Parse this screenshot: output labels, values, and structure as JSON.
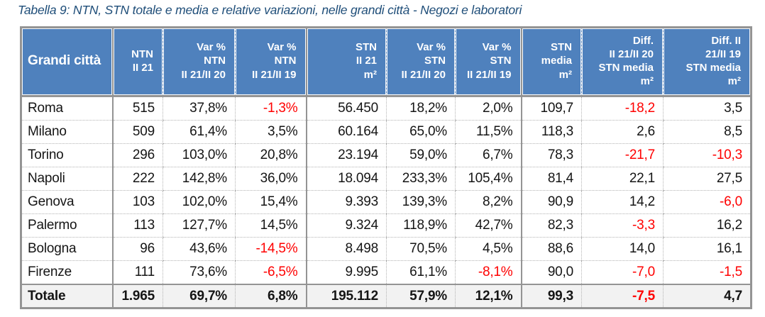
{
  "title": "Tabella 9: NTN, STN totale e media e relative variazioni, nelle grandi città - Negozi e laboratori",
  "colors": {
    "header_bg": "#4F81BD",
    "header_text": "#FFFFFF",
    "title_text": "#1F4E79",
    "negative_value": "#FF0000",
    "total_row_bg": "#F2F2F2",
    "border_strong": "#949494",
    "border_dotted": "#B3B3B3"
  },
  "table": {
    "columns": [
      {
        "id": "grandi-citta",
        "label": "Grandi città"
      },
      {
        "id": "ntn-ii-21",
        "label": "NTN\nII 21"
      },
      {
        "id": "var-ntn-ii21-ii20",
        "label": "Var %\nNTN\nII 21/II 20"
      },
      {
        "id": "var-ntn-ii21-ii19",
        "label": "Var %\nNTN\nII 21/II 19"
      },
      {
        "id": "stn-ii-21-m2",
        "label": "STN\nII 21\nm²"
      },
      {
        "id": "var-stn-ii21-ii20",
        "label": "Var %\nSTN\nII 21/II 20"
      },
      {
        "id": "var-stn-ii21-ii19",
        "label": "Var %\nSTN\nII 21/II 19"
      },
      {
        "id": "stn-media-m2",
        "label": "STN\nmedia\nm²"
      },
      {
        "id": "diff-ii21-ii20-stn-media",
        "label": "Diff.\nII 21/II 20\nSTN media\nm²"
      },
      {
        "id": "diff-ii21-ii19-stn-media",
        "label": "Diff. II\n21/II 19\nSTN media\nm²"
      }
    ],
    "rows": [
      {
        "cells": [
          "Roma",
          "515",
          "37,8%",
          "-1,3%",
          "56.450",
          "18,2%",
          "2,0%",
          "109,7",
          "-18,2",
          "3,5"
        ]
      },
      {
        "cells": [
          "Milano",
          "509",
          "61,4%",
          "3,5%",
          "60.164",
          "65,0%",
          "11,5%",
          "118,3",
          "2,6",
          "8,5"
        ]
      },
      {
        "cells": [
          "Torino",
          "296",
          "103,0%",
          "20,8%",
          "23.194",
          "59,0%",
          "6,7%",
          "78,3",
          "-21,7",
          "-10,3"
        ]
      },
      {
        "cells": [
          "Napoli",
          "222",
          "142,8%",
          "36,0%",
          "18.094",
          "233,3%",
          "105,4%",
          "81,4",
          "22,1",
          "27,5"
        ]
      },
      {
        "cells": [
          "Genova",
          "103",
          "102,0%",
          "15,4%",
          "9.393",
          "139,3%",
          "8,2%",
          "90,9",
          "14,2",
          "-6,0"
        ]
      },
      {
        "cells": [
          "Palermo",
          "113",
          "127,7%",
          "14,5%",
          "9.324",
          "118,9%",
          "42,7%",
          "82,3",
          "-3,3",
          "16,2"
        ]
      },
      {
        "cells": [
          "Bologna",
          "96",
          "43,6%",
          "-14,5%",
          "8.498",
          "70,5%",
          "4,5%",
          "88,6",
          "14,0",
          "16,1"
        ]
      },
      {
        "cells": [
          "Firenze",
          "111",
          "73,6%",
          "-6,5%",
          "9.995",
          "61,1%",
          "-8,1%",
          "90,0",
          "-7,0",
          "-1,5"
        ]
      }
    ],
    "total_row": {
      "cells": [
        "Totale",
        "1.965",
        "69,7%",
        "6,8%",
        "195.112",
        "57,9%",
        "12,1%",
        "99,3",
        "-7,5",
        "4,7"
      ]
    }
  }
}
